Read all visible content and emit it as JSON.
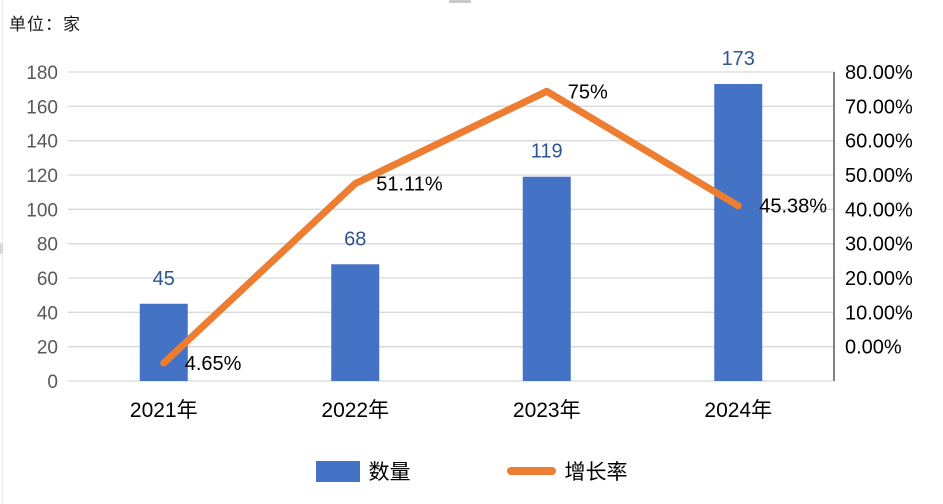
{
  "unit_label": "单位：家",
  "legend": {
    "bar_label": "数量",
    "line_label": "增长率"
  },
  "colors": {
    "bar": "#4472C4",
    "line": "#ED7D31",
    "bar_value_label": "#2F5597",
    "percent_label": "#000000",
    "grid": "#D9D9D9",
    "left_axis_text": "#595959",
    "right_axis_text": "#000000",
    "right_axis_line": "#808080",
    "x_axis_text": "#000000"
  },
  "chart_data": {
    "type": "bar+line combo",
    "title": "单位：家",
    "categories": [
      "2021年",
      "2022年",
      "2023年",
      "2024年"
    ],
    "series": [
      {
        "name": "数量",
        "type": "bar",
        "values": [
          45,
          68,
          119,
          173
        ],
        "labels": [
          "45",
          "68",
          "119",
          "173"
        ],
        "axis": "left"
      },
      {
        "name": "增长率",
        "type": "line",
        "values": [
          4.65,
          51.11,
          75,
          45.38
        ],
        "labels": [
          "4.65%",
          "51.11%",
          "75%",
          "45.38%"
        ],
        "axis": "right"
      }
    ],
    "left_axis": {
      "min": 0,
      "max": 180,
      "step": 20,
      "ticks_top_to_bottom": [
        "180",
        "160",
        "140",
        "120",
        "100",
        "80",
        "60",
        "40",
        "20",
        "0"
      ]
    },
    "right_axis": {
      "min": 0,
      "max": 80,
      "step": 10,
      "ticks_top_to_bottom": [
        "80.00%",
        "70.00%",
        "60.00%",
        "50.00%",
        "40.00%",
        "30.00%",
        "20.00%",
        "10.00%",
        "0.00%"
      ]
    },
    "grid": "horizontal",
    "legend_position": "bottom"
  }
}
